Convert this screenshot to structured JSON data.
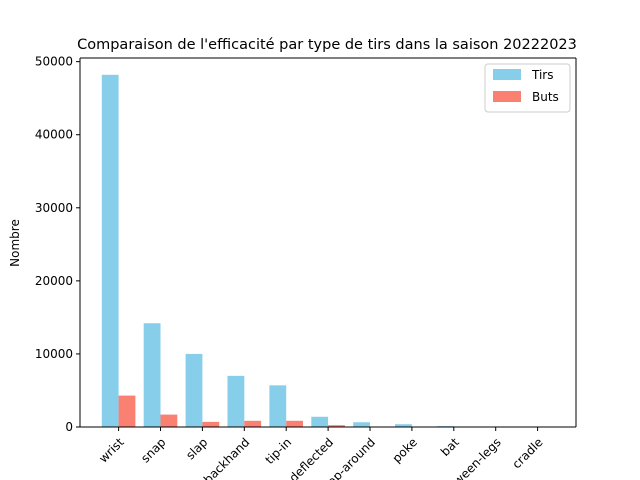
{
  "chart_data": {
    "type": "bar",
    "title": "Comparaison de l'efficacité par type de tirs dans la saison 20222023",
    "xlabel": "",
    "ylabel": "Nombre",
    "categories": [
      "wrist",
      "snap",
      "slap",
      "backhand",
      "tip-in",
      "deflected",
      "wrap-around",
      "poke",
      "bat",
      "between-legs",
      "cradle"
    ],
    "series": [
      {
        "name": "Tirs",
        "color": "#87ceeb",
        "values": [
          48200,
          14200,
          10000,
          7000,
          5700,
          1400,
          650,
          380,
          120,
          40,
          20
        ]
      },
      {
        "name": "Buts",
        "color": "#fa8072",
        "values": [
          4300,
          1700,
          700,
          850,
          850,
          250,
          60,
          30,
          15,
          8,
          3
        ]
      }
    ],
    "ylim": [
      0,
      50500
    ],
    "yticks": [
      0,
      10000,
      20000,
      30000,
      40000,
      50000
    ],
    "legend_position": "top-right",
    "grid": false
  }
}
